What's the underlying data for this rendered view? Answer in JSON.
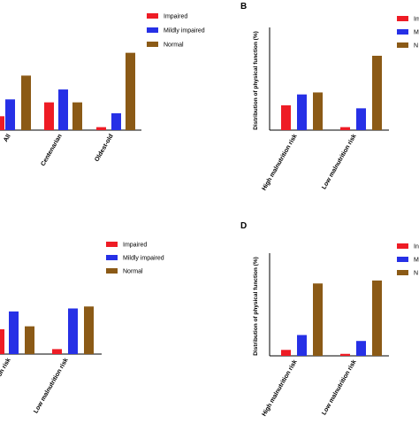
{
  "colors": {
    "impaired": "#ee1c25",
    "mildly_impaired": "#2630e6",
    "normal": "#8b5a16",
    "axis": "#000000"
  },
  "chart_data": [
    {
      "panel_label": "",
      "type": "bar",
      "categories": [
        "All",
        "Centenarian",
        "Oldest-old"
      ],
      "series": [
        {
          "name": "Impaired",
          "values": [
            14,
            28,
            3
          ]
        },
        {
          "name": "Mildly impaired",
          "values": [
            31,
            41,
            17
          ]
        },
        {
          "name": "Normal",
          "values": [
            55,
            28,
            78
          ]
        }
      ],
      "ylim": [
        0,
        100
      ],
      "ylabel": "",
      "legend": [
        "Impaired",
        "Mildly impaired",
        "Normal"
      ],
      "legend_position": "top-right"
    },
    {
      "panel_label": "B",
      "type": "bar",
      "categories": [
        "High malnutrition risk",
        "Low malnutrition risk"
      ],
      "series": [
        {
          "name": "Im",
          "values": [
            25,
            3
          ]
        },
        {
          "name": "M",
          "values": [
            36,
            22
          ]
        },
        {
          "name": "N",
          "values": [
            38,
            75
          ]
        }
      ],
      "ylim": [
        0,
        100
      ],
      "ylabel": "Distribution of physical function (%)",
      "legend": [
        "Im",
        "M",
        "N"
      ],
      "legend_position": "top-right"
    },
    {
      "panel_label": "",
      "type": "bar",
      "categories": [
        "High malnutrition risk",
        "Low malnutrition risk"
      ],
      "series": [
        {
          "name": "Impaired",
          "values": [
            25,
            5
          ]
        },
        {
          "name": "Mildly impaired",
          "values": [
            43,
            46
          ]
        },
        {
          "name": "Normal",
          "values": [
            28,
            48
          ]
        }
      ],
      "ylim": [
        0,
        100
      ],
      "ylabel": "",
      "legend": [
        "Impaired",
        "Mildly impaired",
        "Normal"
      ],
      "legend_position": "top-right"
    },
    {
      "panel_label": "D",
      "type": "bar",
      "categories": [
        "High malnutrition risk",
        "Low malnutrition risk"
      ],
      "series": [
        {
          "name": "In",
          "values": [
            6,
            2
          ]
        },
        {
          "name": "M",
          "values": [
            21,
            15
          ]
        },
        {
          "name": "N",
          "values": [
            73,
            76
          ]
        }
      ],
      "ylim": [
        0,
        100
      ],
      "ylabel": "Distribution of physical function (%)",
      "legend": [
        "In",
        "M",
        "N"
      ],
      "legend_position": "top-right"
    }
  ]
}
